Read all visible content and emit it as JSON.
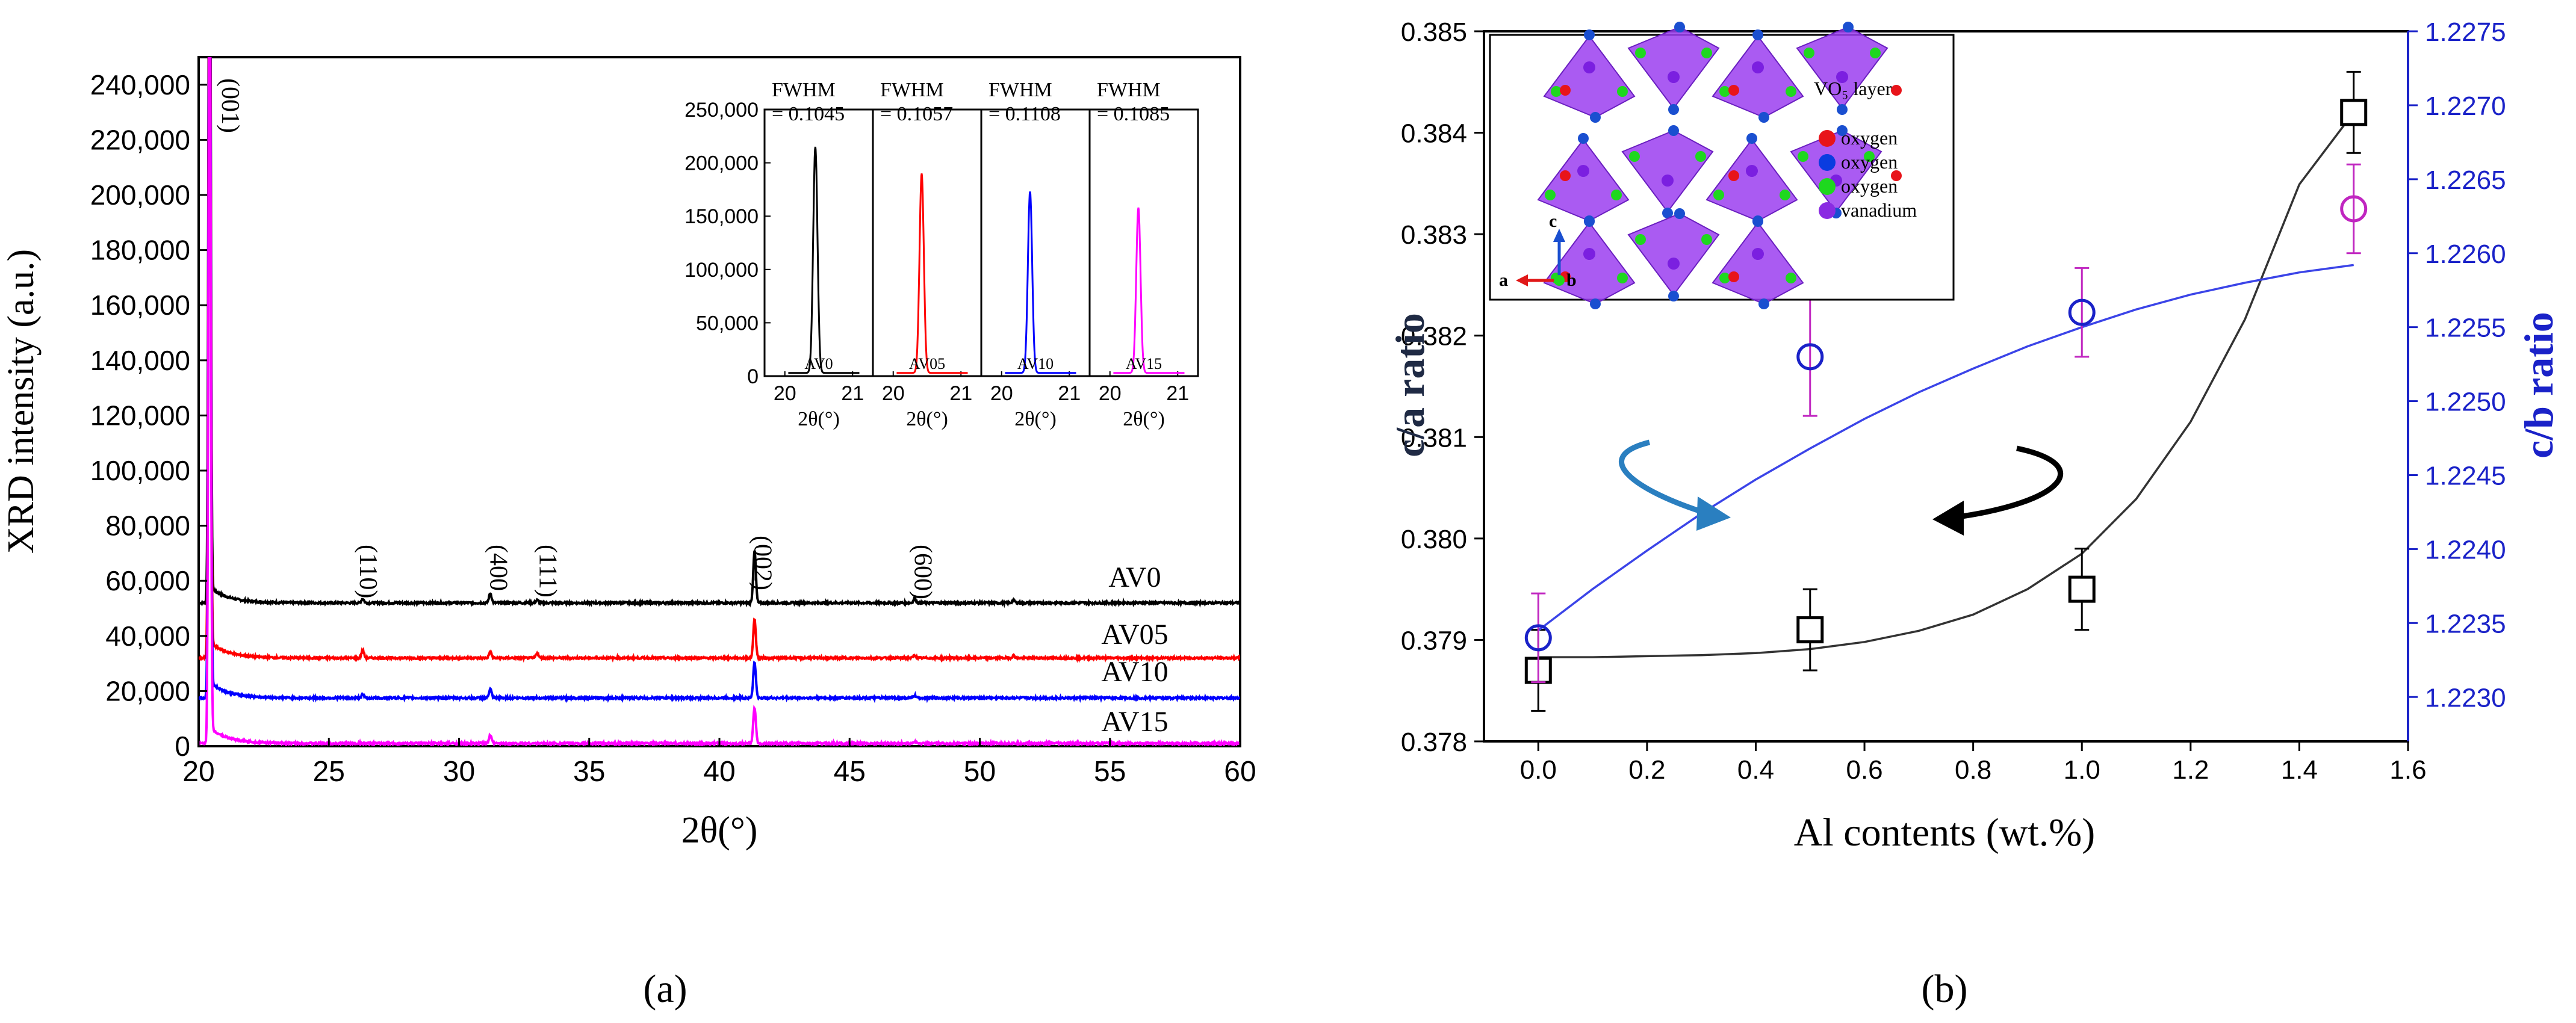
{
  "chart_data": [
    {
      "type": "line",
      "panel_label": "(a)",
      "xlabel": "2θ(°)",
      "ylabel": "XRD intensity (a.u.)",
      "xlim": [
        20,
        60
      ],
      "ylim": [
        0,
        250000
      ],
      "xticks": [
        20,
        25,
        30,
        35,
        40,
        45,
        50,
        55,
        60
      ],
      "yticks": [
        0,
        20000,
        40000,
        60000,
        80000,
        100000,
        120000,
        140000,
        160000,
        180000,
        200000,
        220000,
        240000
      ],
      "ytick_labels": [
        "0",
        "20,000",
        "40,000",
        "60,000",
        "80,000",
        "100,000",
        "120,000",
        "140,000",
        "160,000",
        "180,000",
        "200,000",
        "220,000",
        "240,000"
      ],
      "series": [
        {
          "name": "AV0",
          "color": "#000000",
          "baseline": 52000,
          "peaks": [
            [
              20.42,
              300000
            ],
            [
              26.3,
              1500
            ],
            [
              31.2,
              3500
            ],
            [
              33.0,
              1000
            ],
            [
              41.35,
              19000
            ],
            [
              47.5,
              1500
            ],
            [
              51.3,
              1000
            ]
          ]
        },
        {
          "name": "AV05",
          "color": "#ff0000",
          "baseline": 32000,
          "peaks": [
            [
              20.42,
              300000
            ],
            [
              26.3,
              2800
            ],
            [
              31.2,
              2200
            ],
            [
              33.0,
              1800
            ],
            [
              41.35,
              14000
            ],
            [
              47.5,
              1000
            ],
            [
              51.3,
              900
            ]
          ]
        },
        {
          "name": "AV10",
          "color": "#0000ff",
          "baseline": 17500,
          "peaks": [
            [
              20.42,
              300000
            ],
            [
              26.3,
              1200
            ],
            [
              31.2,
              3200
            ],
            [
              41.35,
              13000
            ],
            [
              47.5,
              900
            ]
          ]
        },
        {
          "name": "AV15",
          "color": "#ff00ff",
          "baseline": 1000,
          "peaks": [
            [
              20.42,
              300000
            ],
            [
              31.2,
              3000
            ],
            [
              41.35,
              13000
            ],
            [
              47.5,
              700
            ]
          ]
        }
      ],
      "peak_labels": [
        {
          "text": "(001)",
          "x": 20.9
        },
        {
          "text": "(110)",
          "x": 26.2
        },
        {
          "text": "(400",
          "x": 31.2
        },
        {
          "text": "(111)",
          "x": 33.1
        },
        {
          "text": "(002)",
          "x": 41.35
        },
        {
          "text": "(600)",
          "x": 47.5
        }
      ],
      "inset": {
        "ylim": [
          0,
          250000
        ],
        "yticks": [
          0,
          50000,
          100000,
          150000,
          200000,
          250000
        ],
        "ytick_labels": [
          "0",
          "50,000",
          "100,000",
          "150,000",
          "200,000",
          "250,000"
        ],
        "xlim": [
          19.7,
          21.3
        ],
        "xtick_labels": [
          "20",
          "21"
        ],
        "xlabel": "2θ(°)",
        "panels": [
          {
            "name": "AV0",
            "fwhm": "= 0.1045",
            "fwhm_title": "FWHM",
            "peak_x": 20.45,
            "peak_y": 212000,
            "color": "#000000"
          },
          {
            "name": "AV05",
            "fwhm": "= 0.1057",
            "fwhm_title": "FWHM",
            "peak_x": 20.42,
            "peak_y": 187000,
            "color": "#ff0000"
          },
          {
            "name": "AV10",
            "fwhm": "= 0.1108",
            "fwhm_title": "FWHM",
            "peak_x": 20.42,
            "peak_y": 170000,
            "color": "#0000ff"
          },
          {
            "name": "AV15",
            "fwhm": "= 0.1085",
            "fwhm_title": "FWHM",
            "peak_x": 20.42,
            "peak_y": 155000,
            "color": "#ff00ff"
          }
        ]
      }
    },
    {
      "type": "scatter",
      "panel_label": "(b)",
      "xlabel": "Al contents (wt.%)",
      "ylabel_left": "c/a ratio",
      "ylabel_right": "c/b ratio",
      "xlim": [
        -0.1,
        1.6
      ],
      "xticks": [
        0.0,
        0.2,
        0.4,
        0.6,
        0.8,
        1.0,
        1.2,
        1.4,
        1.6
      ],
      "xtick_labels": [
        "0.0",
        "0.2",
        "0.4",
        "0.6",
        "0.8",
        "1.0",
        "1.2",
        "1.4",
        "1.6"
      ],
      "ylim_left": [
        0.378,
        0.385
      ],
      "yticks_left": [
        0.378,
        0.379,
        0.38,
        0.381,
        0.382,
        0.383,
        0.384,
        0.385
      ],
      "ytick_labels_left": [
        "0.378",
        "0.379",
        "0.380",
        "0.381",
        "0.382",
        "0.383",
        "0.384",
        "0.385"
      ],
      "ylim_right": [
        1.2227,
        1.2275
      ],
      "yticks_right": [
        1.223,
        1.2235,
        1.224,
        1.2245,
        1.225,
        1.2255,
        1.226,
        1.2265,
        1.227,
        1.2275
      ],
      "ytick_labels_right": [
        "1.2230",
        "1.2235",
        "1.2240",
        "1.2245",
        "1.2250",
        "1.2255",
        "1.2260",
        "1.2265",
        "1.2270",
        "1.2275"
      ],
      "series": [
        {
          "name": "c/a ratio",
          "axis": "left",
          "marker": "square",
          "color": "#000000",
          "x": [
            0.0,
            0.5,
            1.0,
            1.5
          ],
          "y": [
            0.3787,
            0.3791,
            0.3795,
            0.3842
          ],
          "err": [
            0.0004,
            0.0004,
            0.0004,
            0.0004
          ],
          "fit_x": [
            0.0,
            0.1,
            0.2,
            0.3,
            0.4,
            0.5,
            0.6,
            0.7,
            0.8,
            0.9,
            1.0,
            1.1,
            1.2,
            1.3,
            1.4,
            1.5
          ],
          "fit_y": [
            0.37883,
            0.37883,
            0.37884,
            0.37885,
            0.37887,
            0.37891,
            0.37898,
            0.37909,
            0.37925,
            0.3795,
            0.37985,
            0.38039,
            0.38115,
            0.38216,
            0.38349,
            0.3842
          ]
        },
        {
          "name": "c/b ratio",
          "axis": "right",
          "marker": "circle",
          "color": "#0000ff",
          "x": [
            0.0,
            0.5,
            1.0,
            1.5
          ],
          "y": [
            1.2234,
            1.2253,
            1.2256,
            1.2263
          ],
          "err": [
            0.0003,
            0.0004,
            0.0003,
            0.0003
          ],
          "fit_x": [
            0.0,
            0.1,
            0.2,
            0.3,
            0.4,
            0.5,
            0.6,
            0.7,
            0.8,
            0.9,
            1.0,
            1.1,
            1.2,
            1.3,
            1.4,
            1.5
          ],
          "fit_y": [
            1.22345,
            1.22373,
            1.22399,
            1.22424,
            1.22447,
            1.22468,
            1.22488,
            1.22506,
            1.22522,
            1.22537,
            1.2255,
            1.22562,
            1.22572,
            1.2258,
            1.22587,
            1.22592
          ]
        }
      ],
      "structure_inset": {
        "layer_label": "VO₅ layer",
        "legend": [
          {
            "label": "oxygen",
            "color": "#e8141a"
          },
          {
            "label": "oxygen",
            "color": "#0a3ce0"
          },
          {
            "label": "oxygen",
            "color": "#1ed81e"
          },
          {
            "label": "vanadium",
            "color": "#8a2be2"
          }
        ],
        "axis_labels": {
          "a": "a",
          "b": "b",
          "c": "c"
        }
      }
    }
  ]
}
